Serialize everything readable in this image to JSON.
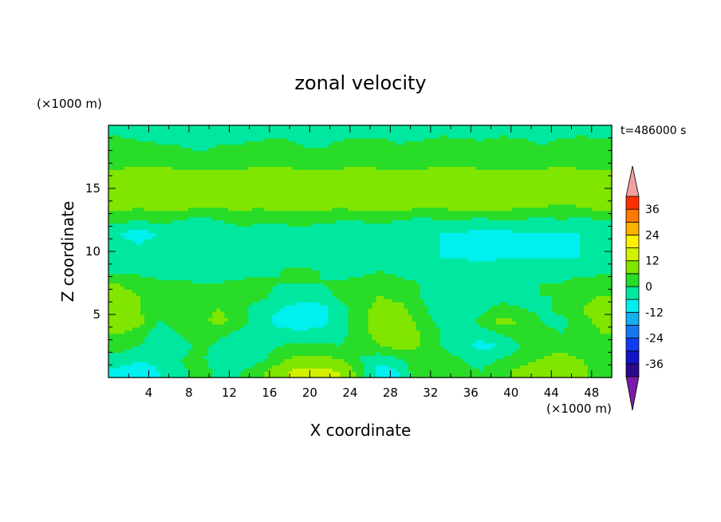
{
  "chart_data": {
    "type": "heatmap",
    "title": "zonal velocity",
    "xlabel": "X coordinate",
    "ylabel": "Z coordinate",
    "x_unit": "(×1000 m)",
    "y_unit": "(×1000 m)",
    "time_label": "t=486000 s",
    "xlim": [
      0,
      50
    ],
    "ylim": [
      0,
      20
    ],
    "x_ticks": [
      4,
      8,
      12,
      16,
      20,
      24,
      28,
      32,
      36,
      40,
      44,
      48
    ],
    "y_ticks": [
      5,
      10,
      15
    ],
    "colorbar": {
      "levels": [
        -42,
        -36,
        -30,
        -24,
        -18,
        -12,
        -6,
        0,
        6,
        12,
        18,
        24,
        30,
        36,
        42
      ],
      "tick_labels": [
        "36",
        "24",
        "12",
        "0",
        "-12",
        "-24",
        "-36"
      ],
      "colors": [
        "#7a1aa8",
        "#2a0a8a",
        "#1414c8",
        "#0f3cf0",
        "#1478f0",
        "#12b0f0",
        "#00f0f0",
        "#00e8a0",
        "#28dc28",
        "#80e600",
        "#d2f000",
        "#fff000",
        "#ffb000",
        "#ff7800",
        "#ff3000",
        "#e80000",
        "#f0a0a0"
      ],
      "extend": "both"
    },
    "x": [
      1,
      3,
      5,
      7,
      9,
      11,
      13,
      15,
      17,
      19,
      21,
      23,
      25,
      27,
      29,
      31,
      33,
      35,
      37,
      39,
      41,
      43,
      45,
      47,
      49
    ],
    "y": [
      0.5,
      1.5,
      2.5,
      3.5,
      4.5,
      5.5,
      6.5,
      7.5,
      8.5,
      9.5,
      10.5,
      11.5,
      12.5,
      13.5,
      14.5,
      15.5,
      16.5,
      17.5,
      18.5,
      19.5
    ],
    "z": [
      [
        -8,
        -12,
        -6,
        -2,
        3,
        -2,
        0,
        4,
        10,
        14,
        14,
        12,
        4,
        -10,
        -6,
        6,
        4,
        2,
        0,
        4,
        8,
        10,
        12,
        8,
        2
      ],
      [
        -2,
        -4,
        -4,
        0,
        2,
        -4,
        -6,
        -2,
        4,
        8,
        8,
        6,
        0,
        -4,
        0,
        4,
        4,
        0,
        -2,
        0,
        4,
        6,
        8,
        6,
        2
      ],
      [
        2,
        0,
        -6,
        -4,
        2,
        -2,
        -4,
        -4,
        0,
        2,
        2,
        0,
        2,
        6,
        8,
        6,
        0,
        -4,
        -8,
        -6,
        0,
        4,
        4,
        2,
        4
      ],
      [
        6,
        4,
        -4,
        0,
        4,
        2,
        -2,
        -4,
        -4,
        -4,
        -4,
        -2,
        4,
        8,
        10,
        6,
        0,
        -4,
        -4,
        0,
        4,
        2,
        0,
        2,
        6
      ],
      [
        10,
        8,
        0,
        2,
        4,
        8,
        4,
        -4,
        -8,
        -10,
        -8,
        -4,
        4,
        10,
        10,
        4,
        -2,
        -4,
        2,
        8,
        6,
        0,
        -2,
        4,
        8
      ],
      [
        10,
        6,
        2,
        4,
        4,
        6,
        2,
        -2,
        -6,
        -8,
        -8,
        -4,
        4,
        8,
        8,
        2,
        -4,
        -4,
        -2,
        2,
        0,
        -2,
        2,
        6,
        10
      ],
      [
        8,
        6,
        4,
        2,
        2,
        2,
        0,
        2,
        -2,
        -4,
        -4,
        2,
        4,
        6,
        4,
        0,
        -4,
        -6,
        -4,
        -2,
        -2,
        0,
        0,
        4,
        6
      ],
      [
        6,
        4,
        2,
        2,
        0,
        0,
        2,
        2,
        0,
        0,
        0,
        2,
        2,
        4,
        2,
        0,
        -2,
        -2,
        -2,
        0,
        0,
        0,
        0,
        2,
        4
      ],
      [
        -2,
        -2,
        -4,
        -4,
        -4,
        -4,
        -4,
        -2,
        0,
        2,
        0,
        -4,
        -2,
        0,
        -2,
        -4,
        -4,
        -2,
        0,
        -2,
        -4,
        -4,
        -2,
        -2,
        -2
      ],
      [
        -6,
        -4,
        -6,
        -6,
        -6,
        -4,
        -4,
        -4,
        -4,
        -4,
        -4,
        -6,
        -4,
        -4,
        -4,
        -6,
        -6,
        -6,
        -8,
        -6,
        -6,
        -6,
        -6,
        -6,
        -6
      ],
      [
        -4,
        -6,
        -4,
        -4,
        -4,
        -6,
        -4,
        -4,
        -4,
        -4,
        -4,
        -4,
        -4,
        -4,
        -4,
        -4,
        -6,
        -8,
        -10,
        -10,
        -8,
        -8,
        -8,
        -6,
        -4
      ],
      [
        -6,
        -8,
        -6,
        -4,
        -4,
        -4,
        -2,
        -4,
        -4,
        -2,
        -4,
        -4,
        -4,
        -4,
        -6,
        -4,
        -6,
        -6,
        -8,
        -8,
        -6,
        -6,
        -6,
        -6,
        -4
      ],
      [
        2,
        0,
        2,
        0,
        -2,
        0,
        2,
        2,
        2,
        2,
        2,
        0,
        0,
        2,
        0,
        -2,
        0,
        0,
        -2,
        0,
        0,
        -2,
        0,
        -2,
        0
      ],
      [
        8,
        6,
        8,
        8,
        6,
        6,
        8,
        6,
        8,
        8,
        8,
        6,
        8,
        8,
        8,
        6,
        6,
        8,
        8,
        8,
        6,
        6,
        4,
        6,
        8
      ],
      [
        10,
        10,
        10,
        12,
        10,
        10,
        10,
        10,
        12,
        12,
        12,
        10,
        12,
        12,
        10,
        10,
        10,
        10,
        12,
        10,
        10,
        10,
        10,
        10,
        10
      ],
      [
        10,
        10,
        10,
        10,
        10,
        10,
        12,
        10,
        10,
        10,
        10,
        10,
        10,
        10,
        10,
        10,
        10,
        10,
        10,
        10,
        10,
        10,
        10,
        10,
        10
      ],
      [
        6,
        8,
        8,
        6,
        6,
        6,
        6,
        8,
        8,
        6,
        6,
        6,
        8,
        6,
        6,
        6,
        8,
        8,
        6,
        6,
        6,
        6,
        8,
        6,
        6
      ],
      [
        2,
        2,
        0,
        2,
        2,
        2,
        0,
        2,
        2,
        2,
        4,
        2,
        2,
        2,
        0,
        2,
        2,
        2,
        2,
        0,
        2,
        2,
        2,
        2,
        2
      ],
      [
        4,
        2,
        0,
        0,
        -2,
        0,
        0,
        2,
        2,
        0,
        -2,
        2,
        4,
        2,
        0,
        2,
        4,
        2,
        2,
        4,
        2,
        0,
        2,
        4,
        2
      ],
      [
        -2,
        -4,
        -2,
        -2,
        -4,
        -2,
        -2,
        -4,
        -2,
        -2,
        -2,
        -4,
        -4,
        -2,
        -2,
        -4,
        -2,
        -2,
        -4,
        -2,
        -2,
        -4,
        -2,
        -2,
        -2
      ]
    ]
  }
}
